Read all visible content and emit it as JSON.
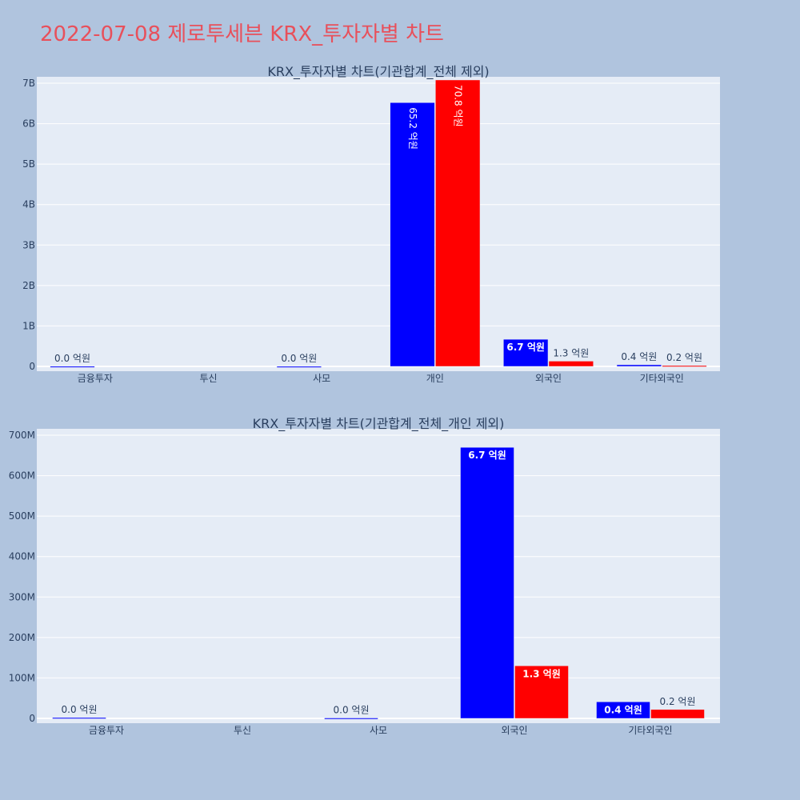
{
  "page": {
    "title": "2022-07-08 제로투세븐 KRX_투자자별 차트",
    "title_color": "#e8505b",
    "background": "#b0c4de"
  },
  "chart_data": [
    {
      "type": "bar",
      "title": "KRX_투자자별 차트(기관합계_전체 제외)",
      "categories": [
        "금융투자",
        "투신",
        "사모",
        "개인",
        "외국인",
        "기타외국인"
      ],
      "ylim": [
        0,
        7000000000
      ],
      "yticks": [
        0,
        1000000000,
        2000000000,
        3000000000,
        4000000000,
        5000000000,
        6000000000,
        7000000000
      ],
      "ytick_labels": [
        "0",
        "1B",
        "2B",
        "3B",
        "4B",
        "5B",
        "6B",
        "7B"
      ],
      "grid": true,
      "series": [
        {
          "color": "#0000ff",
          "values": [
            2000000,
            0,
            1000000,
            6520000000,
            670000000,
            40000000
          ],
          "labels": [
            "0.0 억원",
            "",
            "0.0 억원",
            "65.2 억원",
            "6.7 억원",
            "0.4 억원"
          ]
        },
        {
          "color": "#ff0000",
          "values": [
            0,
            0,
            0,
            7080000000,
            130000000,
            20000000
          ],
          "labels": [
            "",
            "",
            "",
            "70.8 억원",
            "1.3 억원",
            "0.2 억원"
          ]
        }
      ]
    },
    {
      "type": "bar",
      "title": "KRX_투자자별 차트(기관합계_전체_개인 제외)",
      "categories": [
        "금융투자",
        "투신",
        "사모",
        "외국인",
        "기타외국인"
      ],
      "ylim": [
        0,
        700000000
      ],
      "yticks": [
        0,
        100000000,
        200000000,
        300000000,
        400000000,
        500000000,
        600000000,
        700000000
      ],
      "ytick_labels": [
        "0",
        "100M",
        "200M",
        "300M",
        "400M",
        "500M",
        "600M",
        "700M"
      ],
      "grid": true,
      "series": [
        {
          "color": "#0000ff",
          "values": [
            2000000,
            0,
            1000000,
            670000000,
            41000000
          ],
          "labels": [
            "0.0 억원",
            "",
            "0.0 억원",
            "6.7 억원",
            "0.4 억원"
          ]
        },
        {
          "color": "#ff0000",
          "values": [
            0,
            0,
            0,
            130000000,
            22000000
          ],
          "labels": [
            "",
            "",
            "",
            "1.3 억원",
            "0.2 억원"
          ]
        }
      ]
    }
  ]
}
